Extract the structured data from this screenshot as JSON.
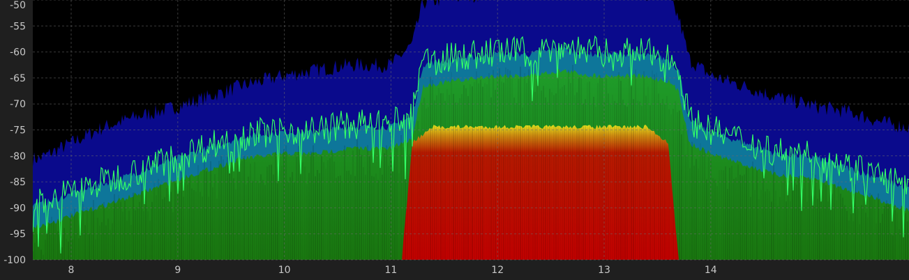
{
  "chart_data": {
    "type": "area",
    "subtype": "spectrum-density",
    "title": "",
    "xlabel": "",
    "ylabel": "",
    "xlim": [
      7.64,
      15.86
    ],
    "ylim": [
      -100,
      -50
    ],
    "grid": true,
    "legend": "none",
    "x_ticks": [
      8,
      9,
      10,
      11,
      12,
      13,
      14
    ],
    "x_tick_labels": [
      "8",
      "9",
      "10",
      "11",
      "12",
      "13",
      "14"
    ],
    "y_ticks": [
      -50,
      -55,
      -60,
      -65,
      -70,
      -75,
      -80,
      -85,
      -90,
      -95,
      -100
    ],
    "y_tick_labels": [
      "-50",
      "-55",
      "-60",
      "-65",
      "-70",
      "-75",
      "-80",
      "-85",
      "-90",
      "-95",
      "-100"
    ],
    "colors": {
      "background": "#000000",
      "panel": "#1f1f1f",
      "peak_trace": "#33ff66",
      "density_low": "#0a0a8c",
      "density_mid_low": "#0f8a9c",
      "density_mid": "#1f8c1a",
      "density_high": "#d8d820",
      "density_max": "#c40000"
    },
    "series": [
      {
        "key": "max_hold",
        "x": [
          7.7,
          8.0,
          8.3,
          8.6,
          9.0,
          9.3,
          9.6,
          10.0,
          10.3,
          10.6,
          11.0,
          11.2,
          11.3,
          11.6,
          12.0,
          12.3,
          12.6,
          12.9,
          13.0,
          13.3,
          13.6,
          13.7,
          13.8,
          14.0,
          14.3,
          14.6,
          15.0,
          15.3,
          15.6,
          15.86
        ],
        "y": [
          -89,
          -87,
          -85,
          -83,
          -80,
          -78,
          -76,
          -75,
          -75,
          -74,
          -74,
          -72,
          -62,
          -61,
          -60,
          -60,
          -59,
          -60,
          -60,
          -60,
          -61,
          -63,
          -73,
          -75,
          -77,
          -79,
          -80,
          -82,
          -84,
          -86
        ]
      },
      {
        "key": "density_upper_envelope",
        "x": [
          7.7,
          8.0,
          8.3,
          8.6,
          9.0,
          9.3,
          9.6,
          10.0,
          10.3,
          10.6,
          11.0,
          11.2,
          11.3,
          11.6,
          12.0,
          12.3,
          12.6,
          12.9,
          13.0,
          13.3,
          13.6,
          13.7,
          13.8,
          14.0,
          14.3,
          14.6,
          15.0,
          15.3,
          15.6,
          15.86
        ],
        "y": [
          -82,
          -79,
          -76,
          -74,
          -72,
          -70,
          -68,
          -66,
          -65,
          -64,
          -64,
          -60,
          -52,
          -51,
          -50,
          -50,
          -50,
          -50,
          -50,
          -50,
          -51,
          -55,
          -63,
          -66,
          -68,
          -70,
          -72,
          -73,
          -75,
          -76
        ]
      },
      {
        "key": "occupied_band",
        "x": [
          11.1,
          11.2,
          11.4,
          12.0,
          12.6,
          13.0,
          13.4,
          13.6,
          13.7
        ],
        "y": [
          -100,
          -77,
          -74,
          -74,
          -74,
          -74,
          -74,
          -77,
          -100
        ]
      }
    ]
  }
}
